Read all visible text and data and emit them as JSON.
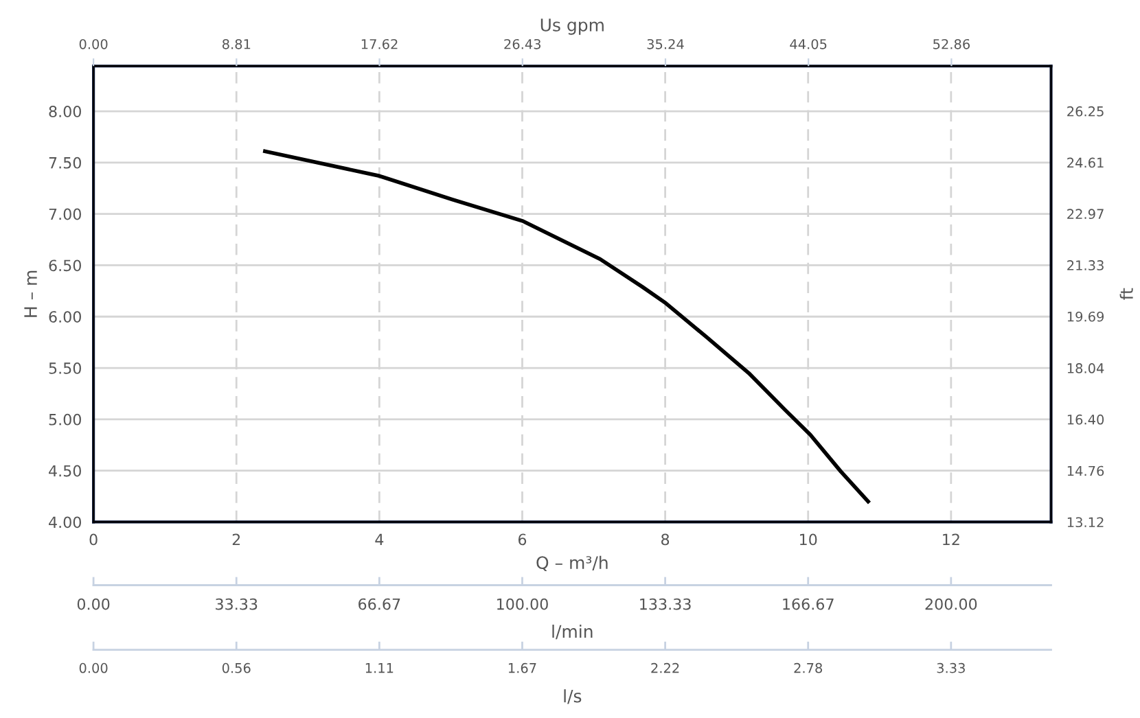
{
  "chart_data": {
    "type": "line",
    "xlabel": "Q – m³/h",
    "ylabel": "H – m",
    "y2label": "ft",
    "x2label": "Us gpm",
    "x": [
      2.4,
      4.0,
      5.02,
      6.01,
      7.09,
      7.68,
      8.01,
      8.58,
      9.17,
      9.68,
      10.03,
      10.46,
      10.84
    ],
    "series": [
      {
        "color": "#000000",
        "values": [
          7.61,
          7.37,
          7.14,
          6.93,
          6.56,
          6.29,
          6.13,
          5.8,
          5.45,
          5.09,
          4.85,
          4.49,
          4.2
        ]
      }
    ],
    "xlim": [
      0,
      13.4
    ],
    "xticks": [
      0,
      2,
      4,
      6,
      8,
      10,
      12
    ],
    "ylim": [
      4,
      8.44
    ],
    "yticks": [
      {
        "value": 4,
        "label": "4.00"
      },
      {
        "value": 4.5,
        "label": "4.50"
      },
      {
        "value": 5,
        "label": "5.00"
      },
      {
        "value": 5.5,
        "label": "5.50"
      },
      {
        "value": 6,
        "label": "6.00"
      },
      {
        "value": 6.5,
        "label": "6.50"
      },
      {
        "value": 7,
        "label": "7.00"
      },
      {
        "value": 7.5,
        "label": "7.50"
      },
      {
        "value": 8,
        "label": "8.00"
      }
    ],
    "y2lim": [
      13.12,
      27.69
    ],
    "y2ticks": [
      13.12,
      14.76,
      {
        "value": 16.4,
        "label": "16.40"
      },
      18.04,
      19.69,
      21.33,
      22.97,
      24.61,
      26.25
    ],
    "x2lim": [
      0,
      59.0
    ],
    "x2ticks": [
      {
        "value": 0,
        "label": "0.00"
      },
      8.81,
      17.62,
      26.43,
      35.24,
      44.05,
      52.86
    ],
    "annotations": [
      "0.00",
      "33.33",
      "66.67",
      "100.00",
      "133.33",
      "166.67",
      "200.00",
      "l/min",
      "0.00",
      "0.56",
      "1.11",
      "1.67",
      "2.22",
      "2.78",
      "3.33",
      "l/s"
    ],
    "grid": true,
    "legend": false,
    "marker": "none",
    "line_style": "solid"
  }
}
